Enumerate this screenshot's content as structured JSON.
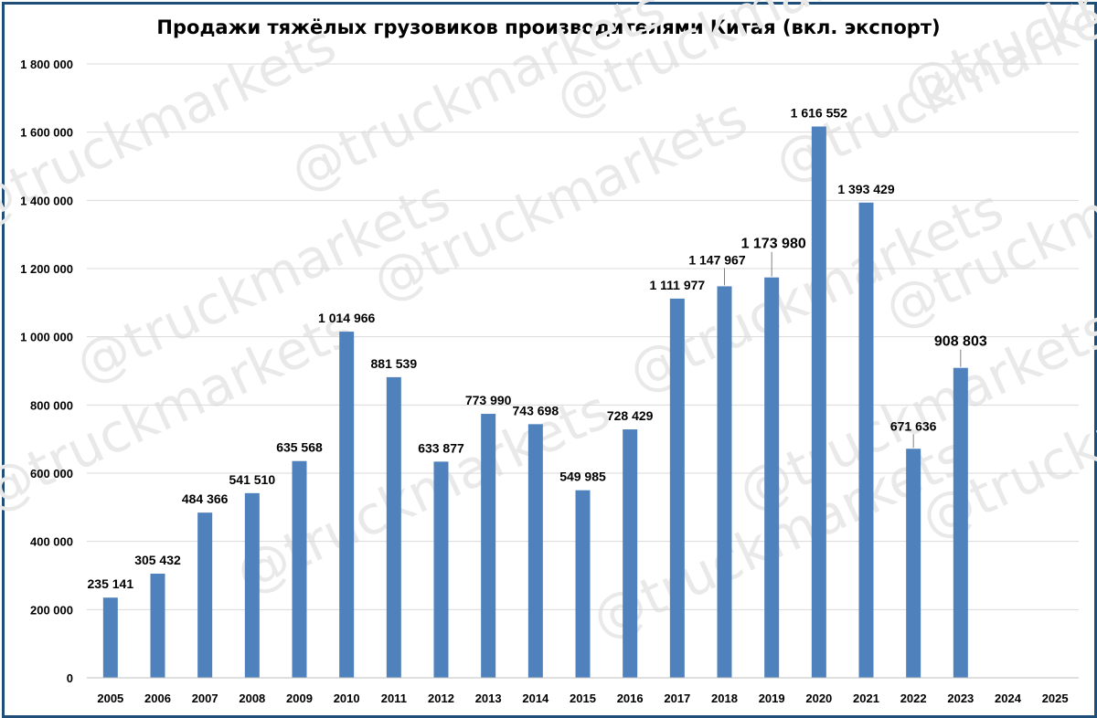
{
  "chart_data": {
    "type": "bar",
    "title": "Продажи тяжёлых грузовиков производителями Китая (вкл. экспорт)",
    "watermark": "@truckmarkets",
    "categories": [
      "2005",
      "2006",
      "2007",
      "2008",
      "2009",
      "2010",
      "2011",
      "2012",
      "2013",
      "2014",
      "2015",
      "2016",
      "2017",
      "2018",
      "2019",
      "2020",
      "2021",
      "2022",
      "2023",
      "2024",
      "2025"
    ],
    "values": [
      235141,
      305432,
      484366,
      541510,
      635568,
      1014966,
      881539,
      633877,
      773990,
      743698,
      549985,
      728429,
      1111977,
      1147967,
      1173980,
      1616552,
      1393429,
      671636,
      908803,
      null,
      null
    ],
    "data_labels": [
      "235 141",
      "305 432",
      "484 366",
      "541 510",
      "635 568",
      "1 014 966",
      "881 539",
      "633 877",
      "773 990",
      "743 698",
      "549 985",
      "728 429",
      "1 111 977",
      "1 147 967",
      "1 173 980",
      "1 616 552",
      "1 393 429",
      "671 636",
      "908 803",
      "",
      ""
    ],
    "yticks": [
      0,
      200000,
      400000,
      600000,
      800000,
      1000000,
      1200000,
      1400000,
      1600000,
      1800000
    ],
    "ytick_labels": [
      "0",
      "200 000",
      "400 000",
      "600 000",
      "800 000",
      "1 000 000",
      "1 200 000",
      "1 400 000",
      "1 600 000",
      "1 800 000"
    ],
    "ylim": [
      0,
      1800000
    ],
    "grid": true,
    "bar_color": "#4f81bd",
    "grid_color": "#d9d9d9",
    "frame_color": "#1f4e79"
  }
}
